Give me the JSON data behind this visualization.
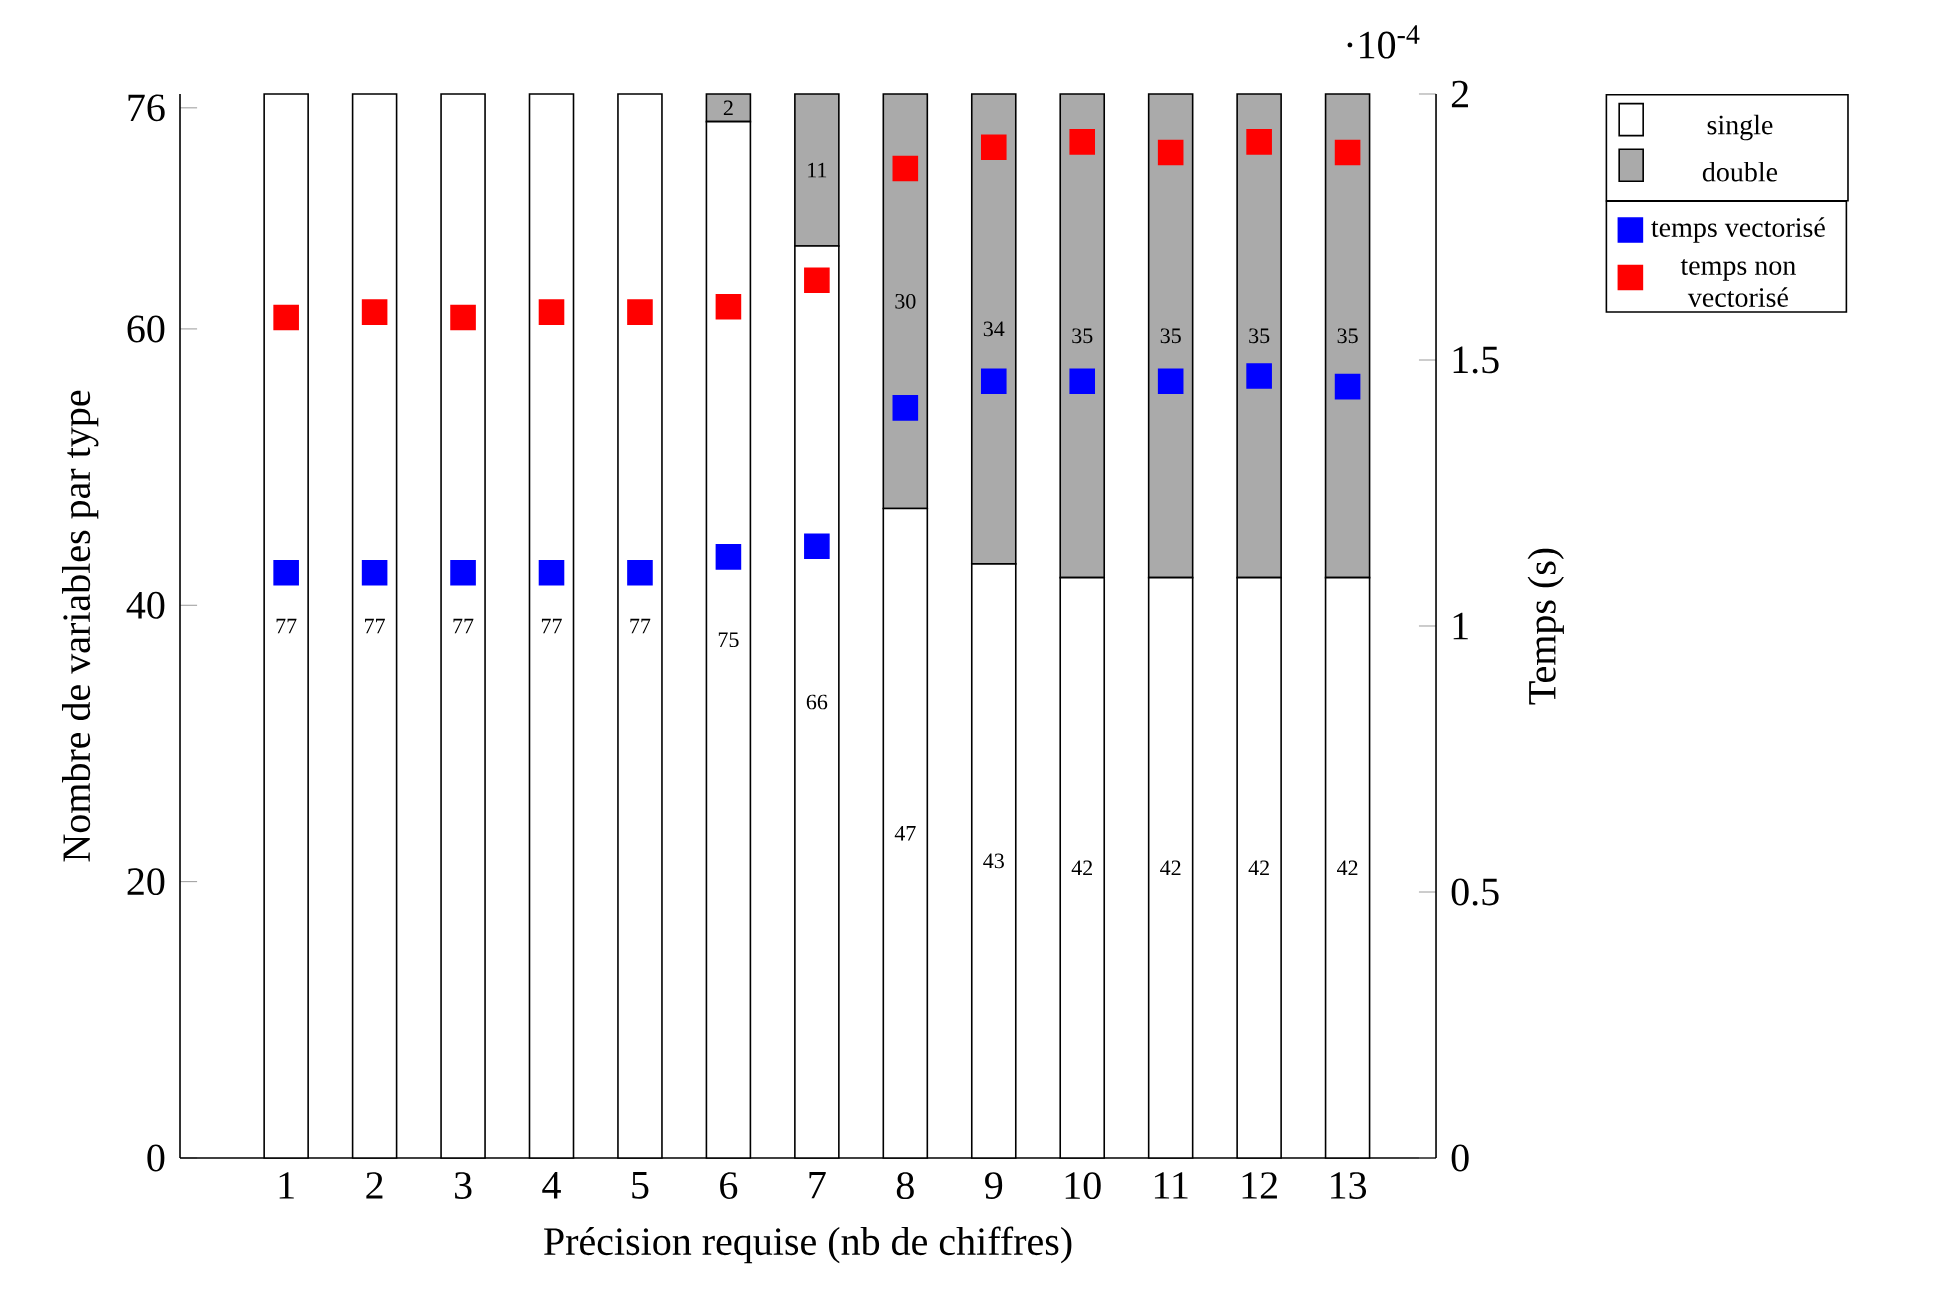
{
  "chart_data": {
    "type": "bar",
    "stacked": true,
    "xlabel": "Précision requise (nb de chiffres)",
    "ylabel": "Nombre de variables par type",
    "y2label": "Temps (s)",
    "categories": [
      "1",
      "2",
      "3",
      "4",
      "5",
      "6",
      "7",
      "8",
      "9",
      "10",
      "11",
      "12",
      "13"
    ],
    "ylim": [
      0,
      77
    ],
    "yticks": [
      0,
      20,
      40,
      60,
      76
    ],
    "y2lim": [
      0,
      2
    ],
    "y2ticks": [
      0,
      0.5,
      1,
      1.5,
      2
    ],
    "annotations": [
      "·10$^{-4}$"
    ],
    "legend": "top right",
    "series": [
      {
        "name": "single",
        "color": "#ffffff",
        "values": [
          77,
          77,
          77,
          77,
          77,
          75,
          66,
          47,
          43,
          42,
          42,
          42,
          42
        ],
        "value_labels": [
          "77",
          "77",
          "77",
          "77",
          "77",
          "75",
          "66",
          "47",
          "43",
          "42",
          "42",
          "42",
          "42"
        ]
      },
      {
        "name": "double",
        "color": "#aaaaaa",
        "values": [
          0,
          0,
          0,
          0,
          0,
          2,
          11,
          30,
          34,
          35,
          35,
          35,
          35
        ],
        "value_labels": [
          null,
          null,
          null,
          null,
          null,
          "2",
          "11",
          "30",
          "34",
          "35",
          "35",
          "35",
          "35"
        ]
      },
      {
        "name": "temps vectorisé",
        "type": "scatter",
        "axis": "y2",
        "marker": "square",
        "color": "#0000ff",
        "values": [
          1.1,
          1.1,
          1.1,
          1.1,
          1.1,
          1.13,
          1.15,
          1.41,
          1.46,
          1.46,
          1.46,
          1.47,
          1.45
        ]
      },
      {
        "name": "temps non vectorisé",
        "type": "scatter",
        "axis": "y2",
        "marker": "square",
        "color": "#ff0000",
        "values": [
          1.58,
          1.59,
          1.58,
          1.59,
          1.59,
          1.6,
          1.65,
          1.86,
          1.9,
          1.91,
          1.89,
          1.91,
          1.89
        ]
      }
    ]
  }
}
